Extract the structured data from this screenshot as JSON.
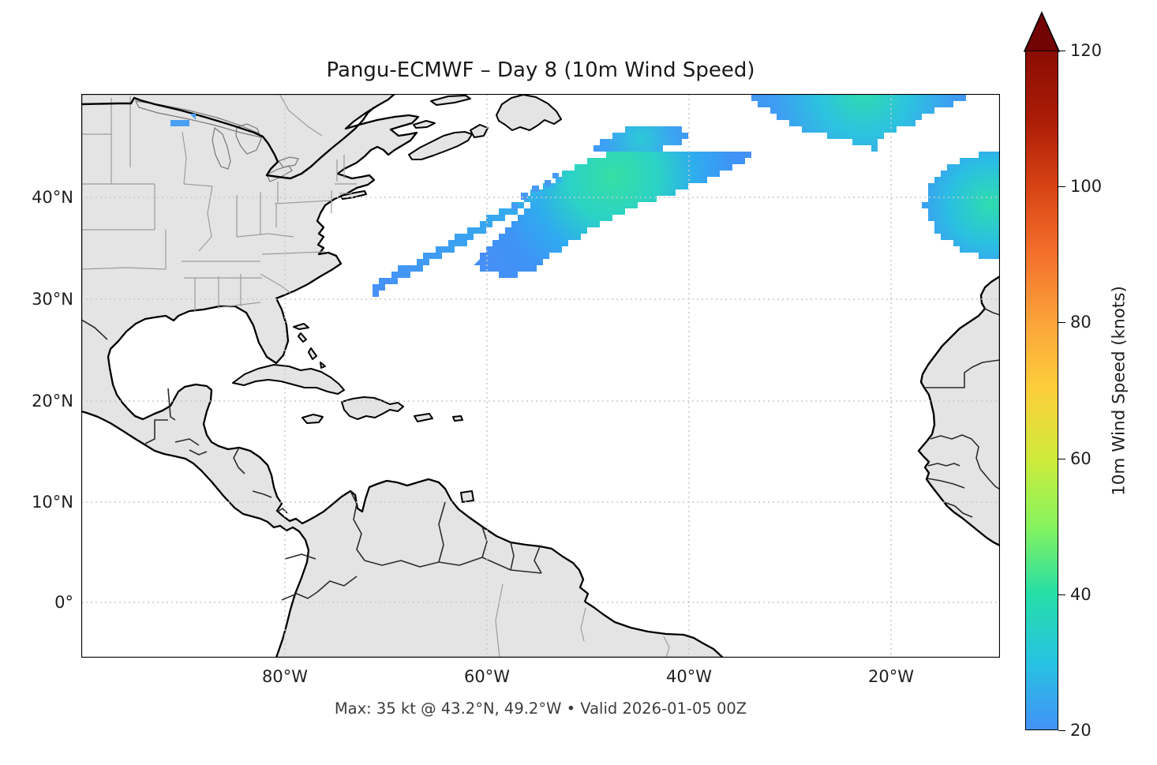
{
  "title": "Pangu-ECMWF – Day 8 (10m Wind Speed)",
  "caption": "Max: 35 kt @ 43.2°N, 49.2°W • Valid 2026-01-05 00Z",
  "axes": {
    "y_tick_labels": [
      "40°N",
      "30°N",
      "20°N",
      "10°N",
      "0°"
    ],
    "x_tick_labels": [
      "80°W",
      "60°W",
      "40°W",
      "20°W"
    ]
  },
  "colorbar": {
    "label": "10m Wind Speed (knots)",
    "ticks": [
      20,
      40,
      60,
      80,
      100,
      120
    ],
    "min": 20,
    "max": 120,
    "extend": "max",
    "stops": [
      {
        "value": 20,
        "color": "#4292f7"
      },
      {
        "value": 30,
        "color": "#27c3e1"
      },
      {
        "value": 40,
        "color": "#25dea7"
      },
      {
        "value": 50,
        "color": "#86f35c"
      },
      {
        "value": 60,
        "color": "#cfea3a"
      },
      {
        "value": 70,
        "color": "#fccf3a"
      },
      {
        "value": 80,
        "color": "#fba43a"
      },
      {
        "value": 90,
        "color": "#f4702b"
      },
      {
        "value": 100,
        "color": "#d84315"
      },
      {
        "value": 110,
        "color": "#ab1c06"
      },
      {
        "value": 120,
        "color": "#8a0d04"
      }
    ],
    "arrow_color": "#720503"
  },
  "style_colors": {
    "land": "#e4e4e4",
    "coastline": "#000000",
    "state_border": "#9c9c9c",
    "country_border": "#333333",
    "grid": "#c9c9c9",
    "wind_low": "#4592f7",
    "wind_mid": "#2bbfe4",
    "wind_high": "#31dfa8"
  },
  "chart_data": {
    "type": "heatmap",
    "title": "Pangu-ECMWF – Day 8 (10m Wind Speed)",
    "model": "Pangu-ECMWF",
    "lead_time_days": 8,
    "variable": "10m Wind Speed",
    "units": "knots",
    "valid_time": "2026-01-05 00Z",
    "max_value": {
      "knots": 35,
      "latitude": "43.2°N",
      "longitude": "49.2°W"
    },
    "colormap_range": [
      20,
      120
    ],
    "colorbar_extend": "max",
    "map_extent": {
      "west": "100°W",
      "east": "9°W",
      "south": "5°S",
      "north": "50°N"
    },
    "x_ticks": [
      "80°W",
      "60°W",
      "40°W",
      "20°W"
    ],
    "y_ticks": [
      "40°N",
      "30°N",
      "20°N",
      "10°N",
      "0°"
    ],
    "grid": "dotted",
    "wind_regions": [
      {
        "name": "main mid-Atlantic band",
        "center": "42°N, 47.5°W",
        "peak_kt": 35,
        "edge_kt": 20
      },
      {
        "name": "upper band north of main",
        "center": "45.8°N, 45°W",
        "peak_kt": 28
      },
      {
        "name": "thin SW streak",
        "extent": "31°N,71°W to 41.7°N,53°W",
        "peak_kt": 24
      },
      {
        "name": "northeast Atlantic blob (top edge)",
        "center": "48.6°N, 23°W",
        "peak_kt": 32
      },
      {
        "name": "east Atlantic blob off Morocco",
        "center": "39°N, 12°W",
        "peak_kt": 31
      },
      {
        "name": "Lake Superior patch",
        "center": "47.8°N, 89°W",
        "peak_kt": 22
      }
    ]
  }
}
